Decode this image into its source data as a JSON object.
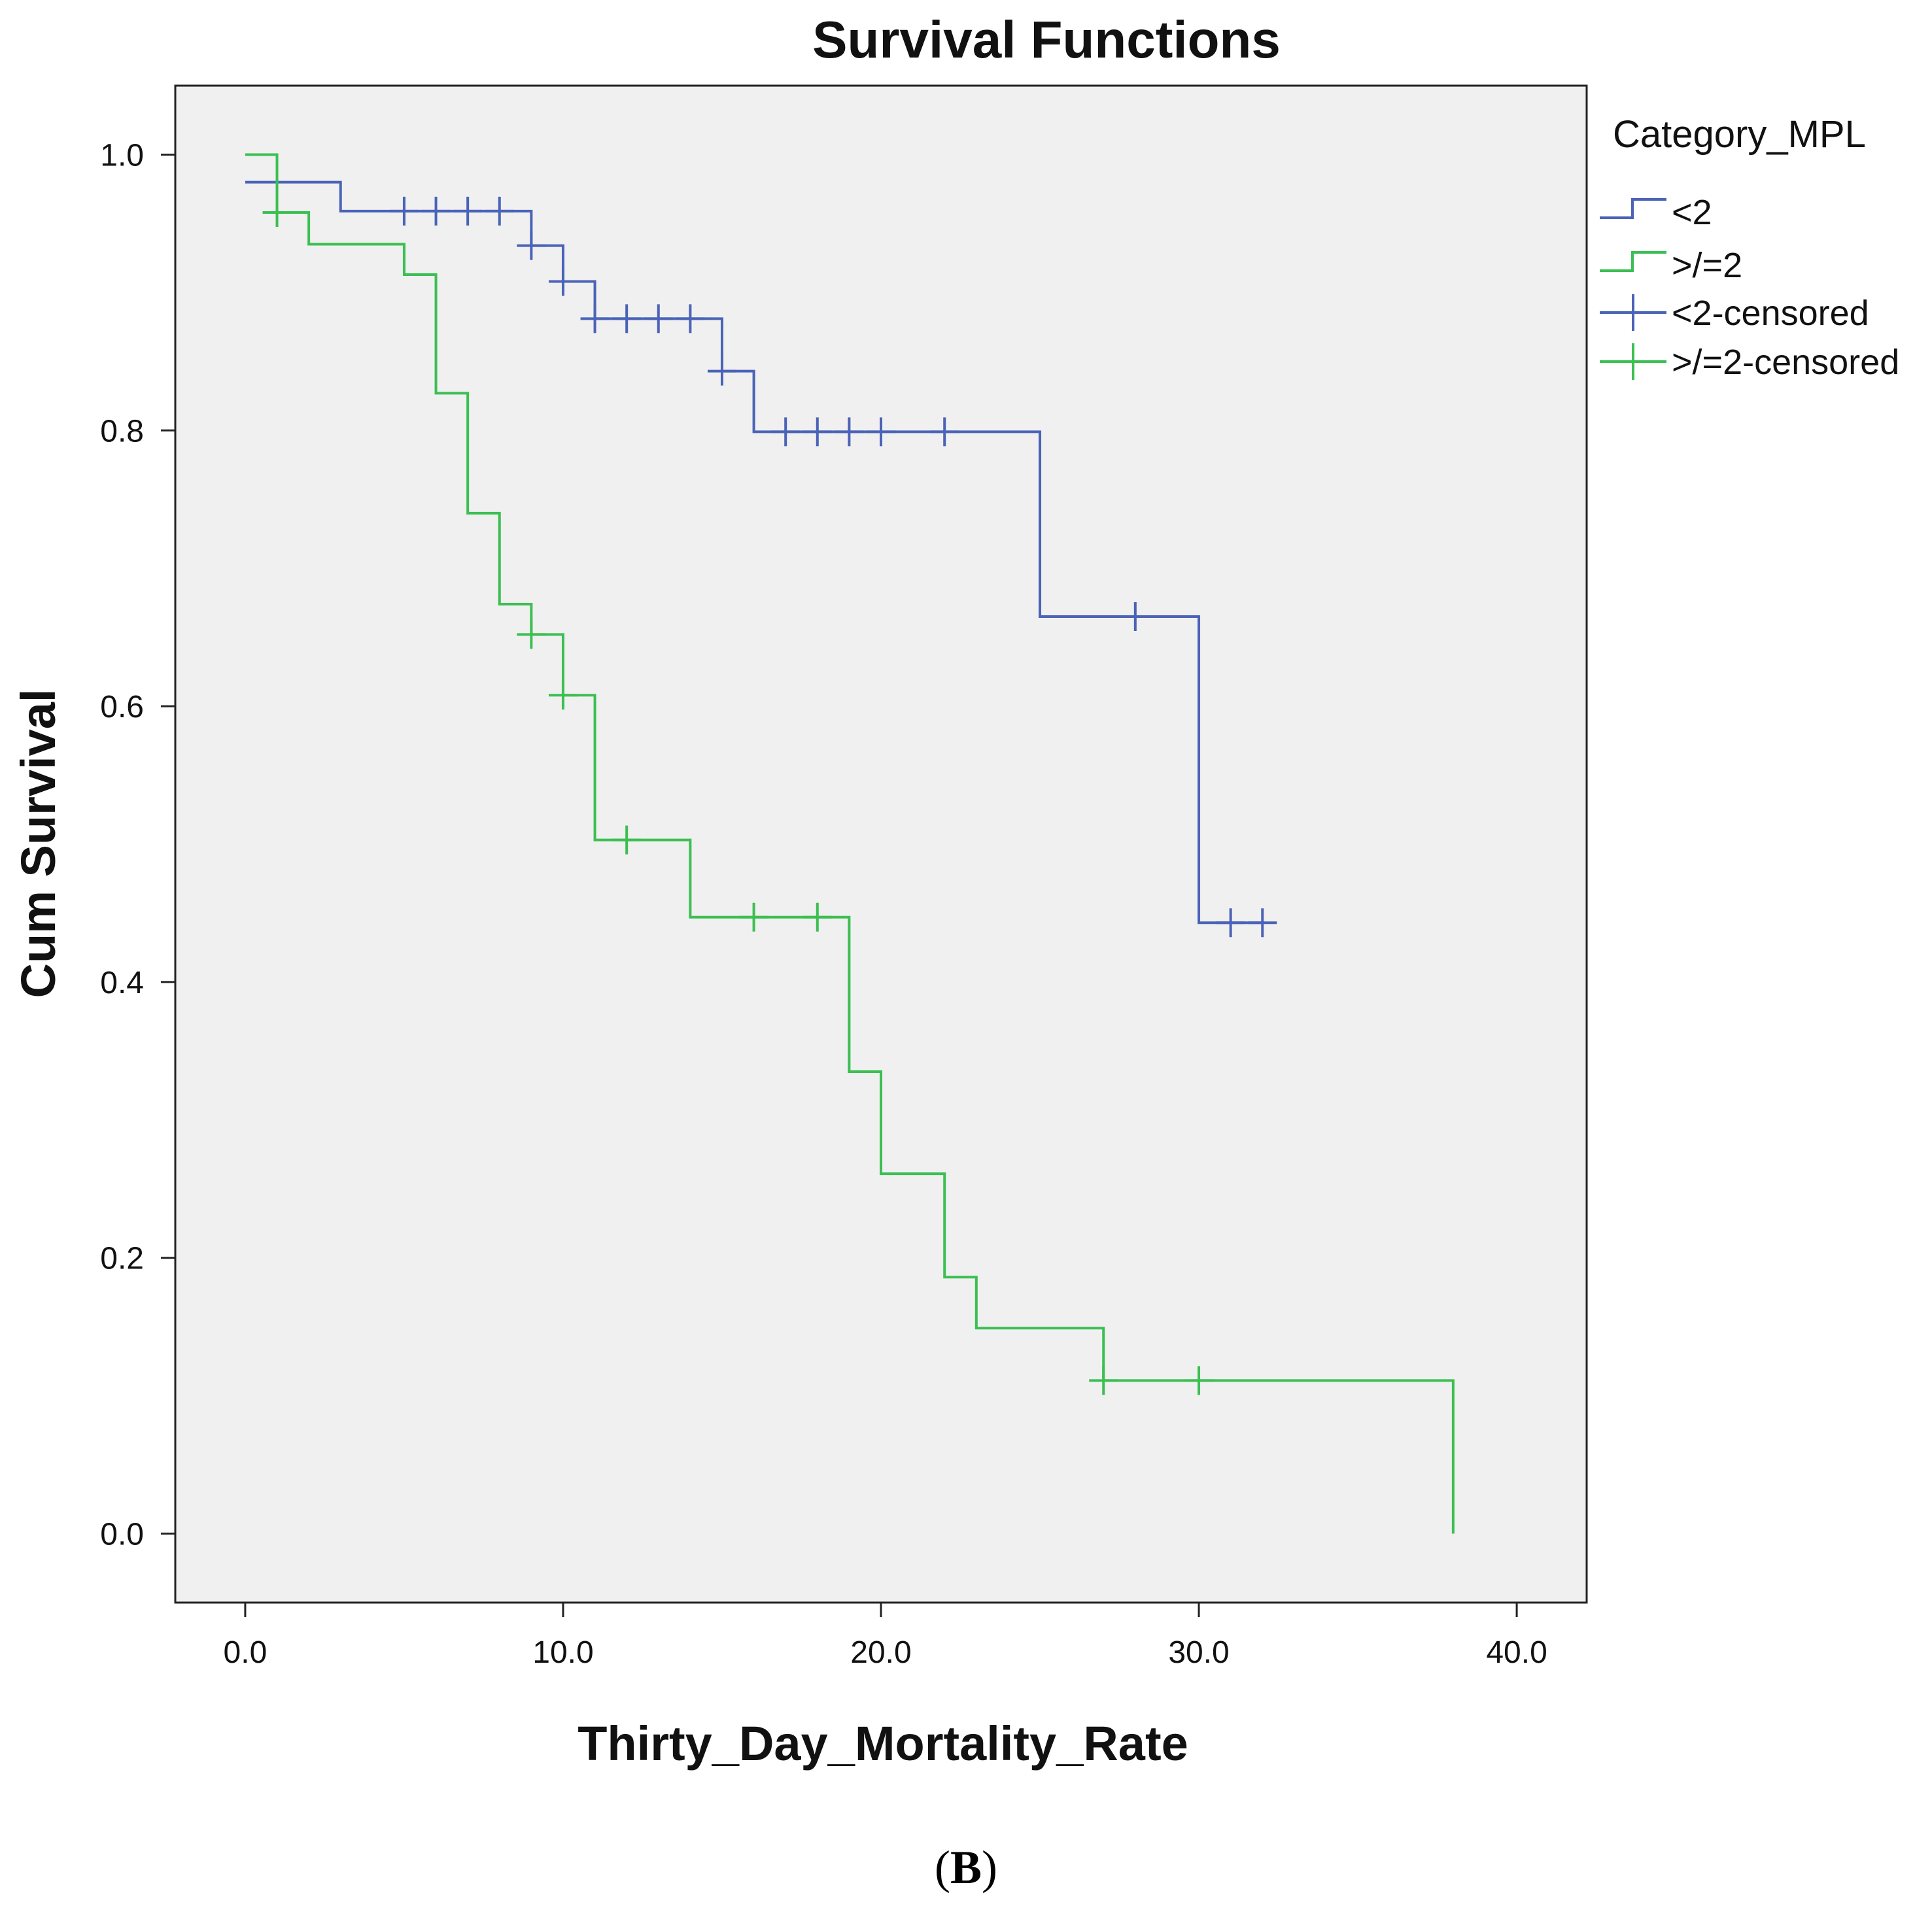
{
  "chart_data": {
    "type": "line",
    "subtype": "kaplan-meier step",
    "title": "Survival Functions",
    "xlabel": "Thirty_Day_Mortality_Rate",
    "ylabel": "Cum Survival",
    "xlim": [
      -2.2,
      42.2
    ],
    "ylim": [
      -0.05,
      1.05
    ],
    "xticks": [
      0,
      10,
      20,
      30,
      40
    ],
    "xtick_labels": [
      "0.0",
      "10.0",
      "20.0",
      "30.0",
      "40.0"
    ],
    "yticks": [
      0,
      0.2,
      0.4,
      0.6,
      0.8,
      1.0
    ],
    "ytick_labels": [
      "0.0",
      "0.2",
      "0.4",
      "0.6",
      "0.8",
      "1.0"
    ],
    "grid": false,
    "legend_title": "Category_MPL",
    "legend_position": "right",
    "series": [
      {
        "name": "<2",
        "censored_name": "<2-censored",
        "color": "#4a63b8",
        "steps": [
          [
            0,
            0.98
          ],
          [
            3,
            0.959
          ],
          [
            9,
            0.934
          ],
          [
            10,
            0.908
          ],
          [
            11,
            0.881
          ],
          [
            15,
            0.843
          ],
          [
            16,
            0.799
          ],
          [
            25,
            0.665
          ],
          [
            30,
            0.443
          ]
        ],
        "end_x": 32,
        "censored": [
          [
            5,
            0.959
          ],
          [
            6,
            0.959
          ],
          [
            7,
            0.959
          ],
          [
            8,
            0.959
          ],
          [
            9,
            0.934
          ],
          [
            10,
            0.908
          ],
          [
            11,
            0.881
          ],
          [
            12,
            0.881
          ],
          [
            13,
            0.881
          ],
          [
            14,
            0.881
          ],
          [
            15,
            0.843
          ],
          [
            17,
            0.799
          ],
          [
            18,
            0.799
          ],
          [
            19,
            0.799
          ],
          [
            20,
            0.799
          ],
          [
            22,
            0.799
          ],
          [
            28,
            0.665
          ],
          [
            31,
            0.443
          ],
          [
            32,
            0.443
          ]
        ]
      },
      {
        "name": ">/=2",
        "censored_name": ">/=2-censored",
        "color": "#3cbf52",
        "steps": [
          [
            0,
            1.0
          ],
          [
            1,
            0.958
          ],
          [
            2,
            0.935
          ],
          [
            5,
            0.913
          ],
          [
            6,
            0.827
          ],
          [
            7,
            0.74
          ],
          [
            8,
            0.674
          ],
          [
            9,
            0.652
          ],
          [
            10,
            0.608
          ],
          [
            11,
            0.503
          ],
          [
            14,
            0.447
          ],
          [
            19,
            0.335
          ],
          [
            20,
            0.261
          ],
          [
            22,
            0.186
          ],
          [
            23,
            0.149
          ],
          [
            27,
            0.111
          ],
          [
            38,
            0.0
          ]
        ],
        "end_x": 38,
        "censored": [
          [
            1,
            0.958
          ],
          [
            9,
            0.652
          ],
          [
            10,
            0.608
          ],
          [
            12,
            0.503
          ],
          [
            16,
            0.447
          ],
          [
            18,
            0.447
          ],
          [
            27,
            0.111
          ],
          [
            30,
            0.111
          ]
        ]
      }
    ]
  },
  "panel_label": {
    "open": "(",
    "letter": "B",
    "close": ")"
  }
}
